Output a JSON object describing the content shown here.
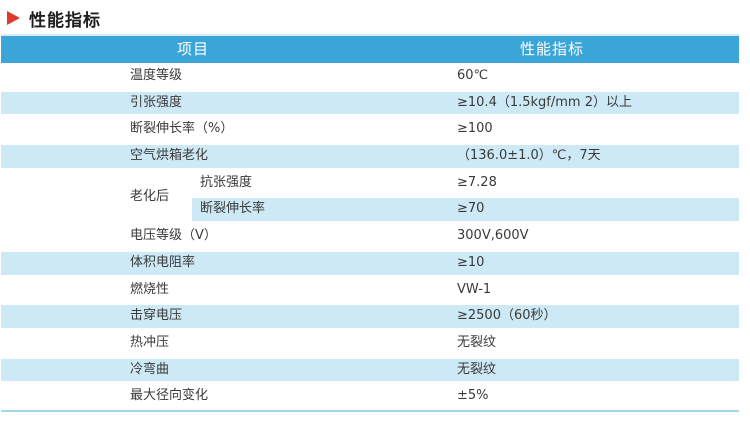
{
  "section_title": "性能指标",
  "table": {
    "headers": {
      "item": "项目",
      "spec": "性能指标"
    },
    "rows_before_group": [
      {
        "label": "温度等级",
        "value": "60℃"
      },
      {
        "label": "引张强度",
        "value": "≥10.4（1.5kgf/mm 2）以上"
      },
      {
        "label": "断裂伸长率（%）",
        "value": "≥100"
      },
      {
        "label": "空气烘箱老化",
        "value": "（136.0±1.0）℃，7天"
      }
    ],
    "group": {
      "label": "老化后",
      "sub_rows": [
        {
          "label": "抗张强度",
          "value": "≥7.28"
        },
        {
          "label": "断裂伸长率",
          "value": "≥70"
        }
      ]
    },
    "rows_after_group": [
      {
        "label": "电压等级（V）",
        "value": "300V,600V"
      },
      {
        "label": "体积电阻率",
        "value": "≥10"
      },
      {
        "label": "燃烧性",
        "value": "VW-1"
      },
      {
        "label": "击穿电压",
        "value": "≥2500（60秒）"
      },
      {
        "label": "热冲压",
        "value": "无裂纹"
      },
      {
        "label": "冷弯曲",
        "value": "无裂纹"
      },
      {
        "label": "最大径向变化",
        "value": "±5%"
      }
    ]
  },
  "colors": {
    "header_bg": "#3aa5d6",
    "row_tint": "#cde9f6",
    "top_line": "#d9edf8",
    "bottom_line": "#a5d5ee",
    "arrow": "#e0392d"
  }
}
